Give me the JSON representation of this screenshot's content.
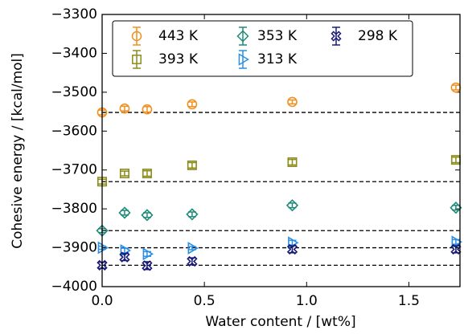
{
  "chart_data": {
    "type": "scatter",
    "xlabel": "Water content / [wt%]",
    "ylabel": "Cohesive energy / [kcal/mol]",
    "x": [
      0,
      0.11,
      0.22,
      0.44,
      0.93,
      1.73
    ],
    "xlim": [
      0,
      1.75
    ],
    "ylim": [
      -4000,
      -3300
    ],
    "xticks": [
      {
        "value": 0,
        "label": "0.0"
      },
      {
        "value": 0.5,
        "label": "0.5"
      },
      {
        "value": 1,
        "label": "1.0"
      },
      {
        "value": 1.5,
        "label": "1.5"
      }
    ],
    "yticks": [
      {
        "value": -4000,
        "label": "−4000"
      },
      {
        "value": -3900,
        "label": "−3900"
      },
      {
        "value": -3800,
        "label": "−3800"
      },
      {
        "value": -3700,
        "label": "−3700"
      },
      {
        "value": -3600,
        "label": "−3600"
      },
      {
        "value": -3500,
        "label": "−3500"
      },
      {
        "value": -3400,
        "label": "−3400"
      },
      {
        "value": -3300,
        "label": "−3300"
      }
    ],
    "reference_lines": [
      -3552,
      -3730,
      -3856,
      -3900,
      -3945
    ],
    "series": [
      {
        "name": "443 K",
        "color": "#f0901e",
        "marker": "circle",
        "values": [
          -3552,
          -3542,
          -3544,
          -3531,
          -3525,
          -3488
        ],
        "errors": [
          6,
          6,
          7,
          6,
          5,
          6
        ]
      },
      {
        "name": "393 K",
        "color": "#8c8c1c",
        "marker": "square",
        "values": [
          -3730,
          -3709,
          -3709,
          -3688,
          -3680,
          -3674
        ],
        "errors": [
          6,
          6,
          7,
          7,
          7,
          7
        ]
      },
      {
        "name": "353 K",
        "color": "#1f8a7a",
        "marker": "diamond",
        "values": [
          -3856,
          -3810,
          -3816,
          -3814,
          -3791,
          -3797
        ],
        "errors": [
          5,
          6,
          6,
          6,
          6,
          6
        ]
      },
      {
        "name": "313 K",
        "color": "#2b8fe3",
        "marker": "triangle-right",
        "values": [
          -3900,
          -3907,
          -3916,
          -3901,
          -3887,
          -3885
        ],
        "errors": [
          4,
          6,
          6,
          4,
          6,
          6
        ]
      },
      {
        "name": "298 K",
        "color": "#1a1a78",
        "marker": "x",
        "values": [
          -3945,
          -3924,
          -3946,
          -3935,
          -3904,
          -3904
        ],
        "errors": [
          8,
          9,
          10,
          9,
          9,
          9
        ]
      }
    ]
  }
}
